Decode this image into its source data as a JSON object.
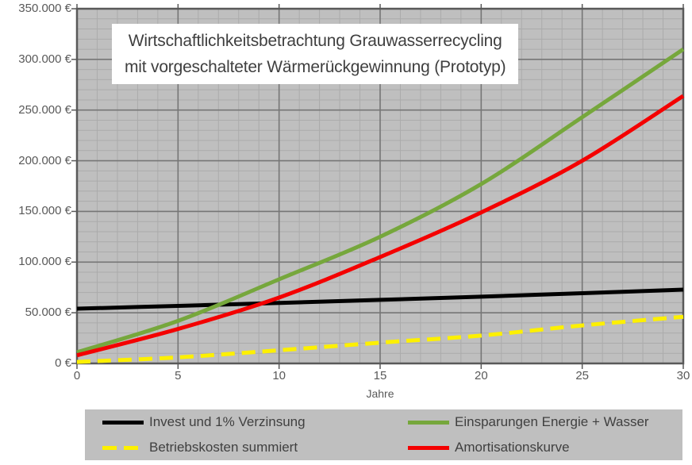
{
  "chart_data": {
    "type": "line",
    "title": "Wirtschaftlichkeitsbetrachtung Grauwasserrecycling mit vorgeschalteter Wärmerückgewinnung (Prototyp)",
    "title_lines": [
      "Wirtschaftlichkeitsbetrachtung Grauwasserrecycling",
      "mit vorgeschalteter Wärmerückgewinnung (Prototyp)"
    ],
    "xlabel": "Jahre",
    "ylabel": "",
    "xlim": [
      0,
      30
    ],
    "ylim": [
      0,
      350000
    ],
    "x_tick_step": 5,
    "x_minor_step": 1,
    "y_tick_step": 50000,
    "y_minor_step": 10000,
    "x_ticks": [
      0,
      5,
      10,
      15,
      20,
      25,
      30
    ],
    "x_tick_labels": [
      "0",
      "5",
      "10",
      "15",
      "20",
      "25",
      "30"
    ],
    "y_ticks": [
      0,
      50000,
      100000,
      150000,
      200000,
      250000,
      300000,
      350000
    ],
    "y_tick_labels": [
      "0 €",
      "50.000 €",
      "100.000 €",
      "150.000 €",
      "200.000 €",
      "250.000 €",
      "300.000 €",
      "350.000 €"
    ],
    "grid": "major+minor",
    "legend_position": "bottom",
    "x": [
      0,
      5,
      10,
      15,
      20,
      25,
      30
    ],
    "series": [
      {
        "name": "Invest und 1% Verzinsung",
        "color": "#000000",
        "style": "solid",
        "values": [
          54000,
          56800,
          59700,
          62700,
          65900,
          69300,
          72800
        ]
      },
      {
        "name": "Betriebskosten summiert",
        "color": "#FDF000",
        "style": "dashed",
        "values": [
          1500,
          6000,
          13000,
          20500,
          27500,
          37500,
          46000
        ]
      },
      {
        "name": "Einsparungen Energie + Wasser",
        "color": "#76A73C",
        "style": "solid",
        "values": [
          11000,
          42000,
          83000,
          125000,
          177000,
          243000,
          310000
        ]
      },
      {
        "name": "Amortisationskurve",
        "color": "#F40000",
        "style": "solid",
        "values": [
          8000,
          34000,
          65000,
          105000,
          149000,
          200000,
          264000
        ]
      }
    ],
    "colors": {
      "plot_bg": "#BFBFBF",
      "major_grid": "#767676",
      "minor_grid": "#ABABAB",
      "axis_border": "#595959",
      "tick_label_text": "#595959",
      "title_text": "#3F3F3F",
      "legend_bg": "#BFBFBF",
      "legend_text": "#404040"
    }
  }
}
